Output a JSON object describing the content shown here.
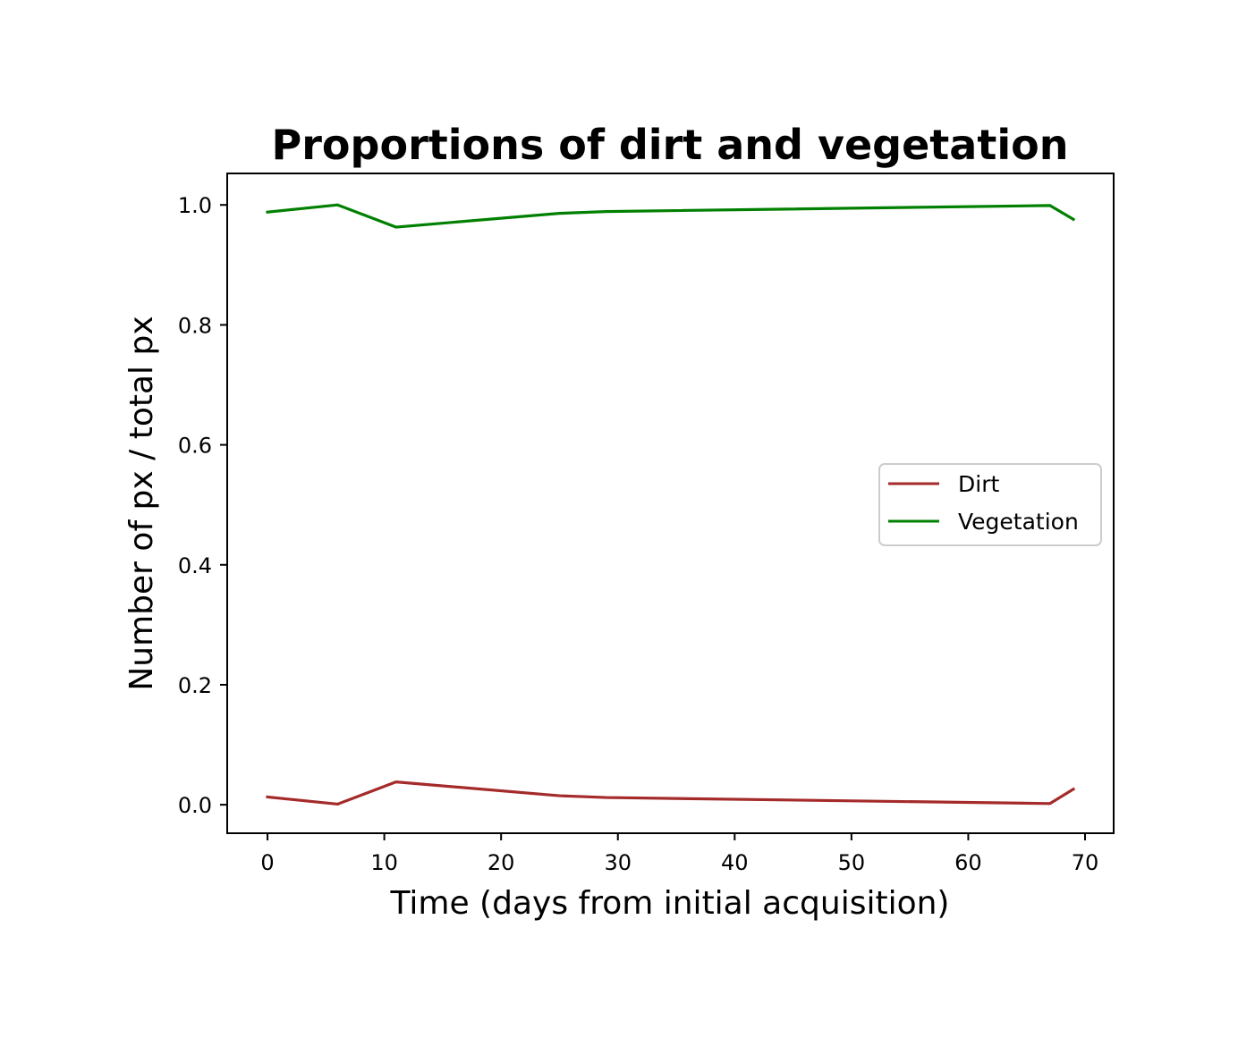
{
  "chart_data": {
    "type": "line",
    "title": "Proportions of dirt and vegetation",
    "xlabel": "Time (days from initial acquisition)",
    "ylabel": "Number of px / total px",
    "xlim": [
      -3.45,
      72.45
    ],
    "ylim": [
      -0.0475,
      1.0525
    ],
    "xticks": [
      0,
      10,
      20,
      30,
      40,
      50,
      60,
      70
    ],
    "xtick_labels": [
      "0",
      "10",
      "20",
      "30",
      "40",
      "50",
      "60",
      "70"
    ],
    "yticks": [
      0.0,
      0.2,
      0.4,
      0.6,
      0.8,
      1.0
    ],
    "ytick_labels": [
      "0.0",
      "0.2",
      "0.4",
      "0.6",
      "0.8",
      "1.0"
    ],
    "grid": false,
    "legend_position": "center-right",
    "series": [
      {
        "name": "Dirt",
        "color": "#a52a2a",
        "x": [
          0,
          6,
          11,
          25,
          29,
          67,
          69
        ],
        "y": [
          0.013,
          0.001,
          0.038,
          0.015,
          0.012,
          0.002,
          0.026
        ]
      },
      {
        "name": "Vegetation",
        "color": "#008000",
        "x": [
          0,
          6,
          11,
          25,
          29,
          67,
          69
        ],
        "y": [
          0.988,
          1.0,
          0.963,
          0.986,
          0.989,
          0.999,
          0.976
        ]
      }
    ]
  }
}
